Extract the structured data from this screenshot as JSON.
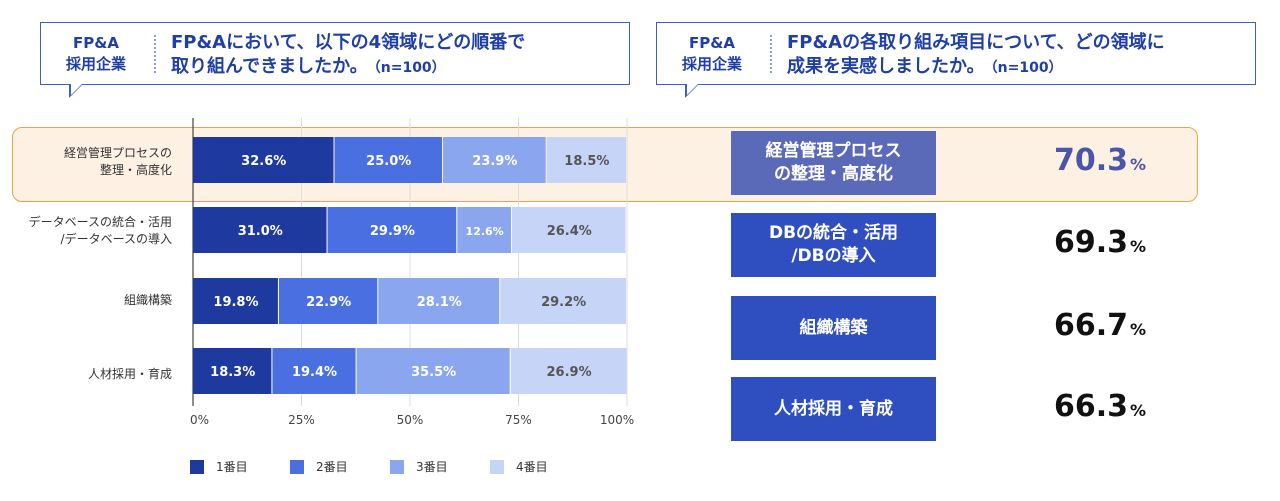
{
  "left_callout": {
    "tag_line1": "FP&A",
    "tag_line2": "採用企業",
    "question_line1": "FP&Aにおいて、以下の4領域にどの順番で",
    "question_line2": "取り組んできましたか。",
    "n": "（n=100）"
  },
  "right_callout": {
    "tag_line1": "FP&A",
    "tag_line2": "採用企業",
    "question_line1": "FP&Aの各取り組み項目について、どの領域に",
    "question_line2": "成果を実感しましたか。",
    "n": "（n=100）"
  },
  "chart_data": {
    "type": "bar",
    "orientation": "horizontal",
    "stacked": true,
    "categories": [
      {
        "line1": "経営管理プロセスの",
        "line2": "整理・高度化"
      },
      {
        "line1": "データベースの統合・活用",
        "line2": "/データベースの導入"
      },
      {
        "line1": "組織構築",
        "line2": ""
      },
      {
        "line1": "人材採用・育成",
        "line2": ""
      }
    ],
    "series": [
      {
        "name": "1番目",
        "values": [
          32.6,
          31.0,
          19.8,
          18.3
        ]
      },
      {
        "name": "2番目",
        "values": [
          25.0,
          29.9,
          22.9,
          19.4
        ]
      },
      {
        "name": "3番目",
        "values": [
          23.9,
          12.6,
          28.1,
          35.5
        ]
      },
      {
        "name": "4番目",
        "values": [
          18.5,
          26.4,
          29.2,
          26.9
        ]
      }
    ],
    "x_ticks": [
      "0%",
      "25%",
      "50%",
      "75%",
      "100%"
    ],
    "xlim": [
      0,
      100
    ],
    "grid": true,
    "legend_position": "bottom",
    "colors": [
      "#1f3a9e",
      "#4a6fe0",
      "#8aa6ee",
      "#c5d4f7"
    ],
    "label_colors": [
      "#ffffff",
      "#ffffff",
      "#ffffff",
      "#555555"
    ]
  },
  "stats": [
    {
      "label_line1": "経営管理プロセス",
      "label_line2": "の整理・高度化",
      "value": "70.3",
      "unit": "%",
      "value_color": "#4a57a8"
    },
    {
      "label_line1": "DBの統合・活用",
      "label_line2": "/DBの導入",
      "value": "69.3",
      "unit": "%",
      "value_color": "#111111"
    },
    {
      "label_line1": "組織構築",
      "label_line2": "",
      "value": "66.7",
      "unit": "%",
      "value_color": "#111111"
    },
    {
      "label_line1": "人材採用・育成",
      "label_line2": "",
      "value": "66.3",
      "unit": "%",
      "value_color": "#111111"
    }
  ]
}
